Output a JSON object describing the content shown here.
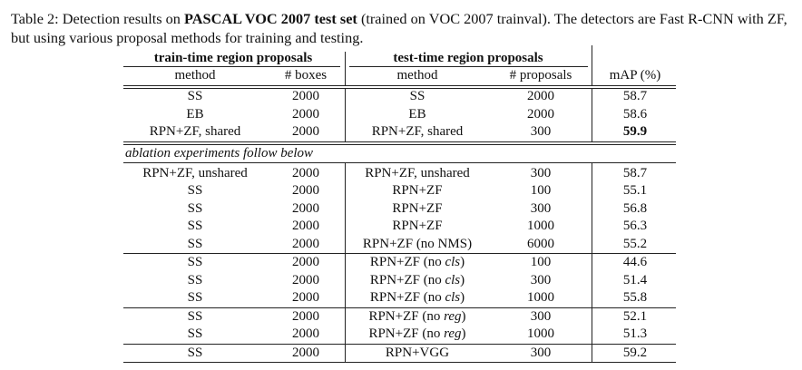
{
  "caption": {
    "prefix": "Table 2: Detection results on",
    "bold": "PASCAL VOC 2007 test set",
    "suffix": "(trained on VOC 2007 trainval). The detectors are Fast R-CNN with ZF, but using various proposal methods for training and testing."
  },
  "table": {
    "groups": [
      "train-time region proposals",
      "test-time region proposals"
    ],
    "columns": [
      "method",
      "# boxes",
      "method",
      "# proposals",
      "mAP (%)"
    ],
    "note": "ablation experiments follow below",
    "sections": [
      [
        [
          "SS",
          2000,
          "SS",
          2000,
          58.7
        ],
        [
          "EB",
          2000,
          "EB",
          2000,
          58.6
        ],
        [
          "RPN+ZF, shared",
          2000,
          "RPN+ZF, shared",
          300,
          {
            "text": 59.9,
            "bold": true
          }
        ]
      ],
      [
        [
          "RPN+ZF, unshared",
          2000,
          "RPN+ZF, unshared",
          300,
          58.7
        ],
        [
          "SS",
          2000,
          "RPN+ZF",
          100,
          55.1
        ],
        [
          "SS",
          2000,
          "RPN+ZF",
          300,
          56.8
        ],
        [
          "SS",
          2000,
          "RPN+ZF",
          1000,
          56.3
        ],
        [
          "SS",
          2000,
          "RPN+ZF (no NMS)",
          6000,
          55.2
        ]
      ],
      [
        [
          "SS",
          2000,
          {
            "parts": [
              "RPN+ZF (no",
              "cls",
              ")"
            ]
          },
          100,
          44.6
        ],
        [
          "SS",
          2000,
          {
            "parts": [
              "RPN+ZF (no",
              "cls",
              ")"
            ]
          },
          300,
          51.4
        ],
        [
          "SS",
          2000,
          {
            "parts": [
              "RPN+ZF (no",
              "cls",
              ")"
            ]
          },
          1000,
          55.8
        ]
      ],
      [
        [
          "SS",
          2000,
          {
            "parts": [
              "RPN+ZF (no",
              "reg",
              ")"
            ]
          },
          300,
          52.1
        ],
        [
          "SS",
          2000,
          {
            "parts": [
              "RPN+ZF (no",
              "reg",
              ")"
            ]
          },
          1000,
          51.3
        ]
      ],
      [
        [
          "SS",
          2000,
          "RPN+VGG",
          300,
          59.2
        ]
      ]
    ]
  }
}
